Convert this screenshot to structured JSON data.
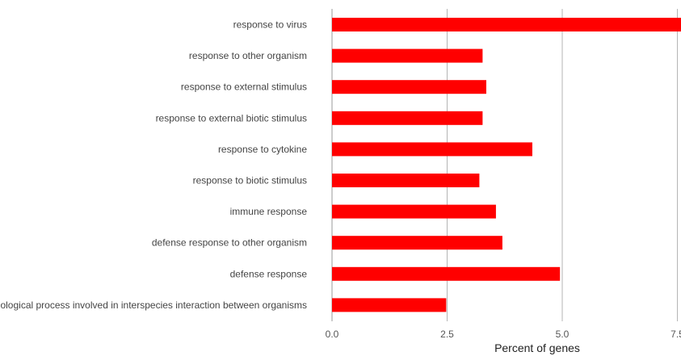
{
  "chart_data": {
    "type": "bar",
    "orientation": "horizontal",
    "categories": [
      "response to virus",
      "response to other organism",
      "response to external stimulus",
      "response to external biotic stimulus",
      "response to cytokine",
      "response to biotic stimulus",
      "immune response",
      "defense response to other organism",
      "defense response",
      "biological process involved in interspecies interaction between organisms"
    ],
    "values": [
      7.65,
      3.27,
      3.35,
      3.27,
      4.35,
      3.2,
      3.56,
      3.7,
      4.95,
      2.48
    ],
    "xlabel": "Percent of genes",
    "ylabel": "",
    "xlim": [
      0,
      7.6
    ],
    "xticks": [
      0,
      2.5,
      5,
      7.5
    ],
    "xtick_labels": [
      "0.0",
      "2.5",
      "5.0",
      "7.5"
    ],
    "bar_color": "#ff0000",
    "grid": true
  }
}
